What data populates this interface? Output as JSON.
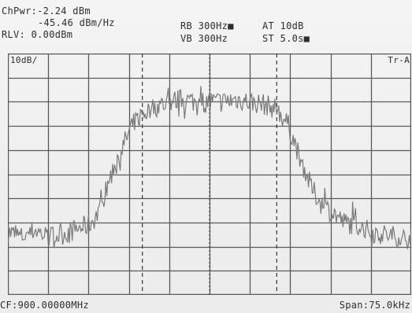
{
  "readouts": {
    "channel_power": "ChPwr:-2.24 dBm",
    "power_density": "-45.46 dBm/Hz",
    "ref_level": "RLV: 0.00dBm",
    "rbw": "RB 300Hz■",
    "vbw": "VB 300Hz",
    "atten": "AT 10dB",
    "sweep": "ST 5.0s■"
  },
  "display": {
    "scale": "10dB/",
    "trace_label": "Tr-A",
    "center_freq": "CF:900.00000MHz",
    "span": "Span:75.0kHz"
  },
  "colors": {
    "background": "#efefef",
    "grid": "#5a5a5a",
    "trace": "#7a7a7a",
    "text": "#2e2e2e"
  },
  "chart_data": {
    "type": "line",
    "title": "",
    "xlabel": "",
    "ylabel": "",
    "xlim": [
      -37.5,
      37.5
    ],
    "ylim": [
      -100,
      0
    ],
    "grid": true,
    "channel_markers": [
      -12.5,
      12.5
    ],
    "center_marker": 0,
    "series": [
      {
        "values": [
          {
            "x": -37.5,
            "y": -74
          },
          {
            "x": -35,
            "y": -76
          },
          {
            "x": -32.5,
            "y": -73
          },
          {
            "x": -30,
            "y": -76
          },
          {
            "x": -27.5,
            "y": -75
          },
          {
            "x": -25,
            "y": -73
          },
          {
            "x": -22.5,
            "y": -71
          },
          {
            "x": -20.5,
            "y": -66
          },
          {
            "x": -19,
            "y": -55
          },
          {
            "x": -17.5,
            "y": -45
          },
          {
            "x": -16,
            "y": -38
          },
          {
            "x": -14.5,
            "y": -30
          },
          {
            "x": -12.5,
            "y": -25
          },
          {
            "x": -10,
            "y": -22
          },
          {
            "x": -7.5,
            "y": -20
          },
          {
            "x": -5,
            "y": -19
          },
          {
            "x": -2.5,
            "y": -20
          },
          {
            "x": 0,
            "y": -20
          },
          {
            "x": 2.5,
            "y": -20
          },
          {
            "x": 5,
            "y": -19
          },
          {
            "x": 7.5,
            "y": -20
          },
          {
            "x": 10,
            "y": -21
          },
          {
            "x": 12.5,
            "y": -23
          },
          {
            "x": 14.5,
            "y": -29
          },
          {
            "x": 16,
            "y": -38
          },
          {
            "x": 17.5,
            "y": -47
          },
          {
            "x": 19,
            "y": -56
          },
          {
            "x": 21,
            "y": -63
          },
          {
            "x": 23,
            "y": -66
          },
          {
            "x": 25,
            "y": -70
          },
          {
            "x": 27.5,
            "y": -71
          },
          {
            "x": 30,
            "y": -74
          },
          {
            "x": 32.5,
            "y": -75
          },
          {
            "x": 35,
            "y": -76
          },
          {
            "x": 37.5,
            "y": -77
          }
        ]
      }
    ]
  }
}
